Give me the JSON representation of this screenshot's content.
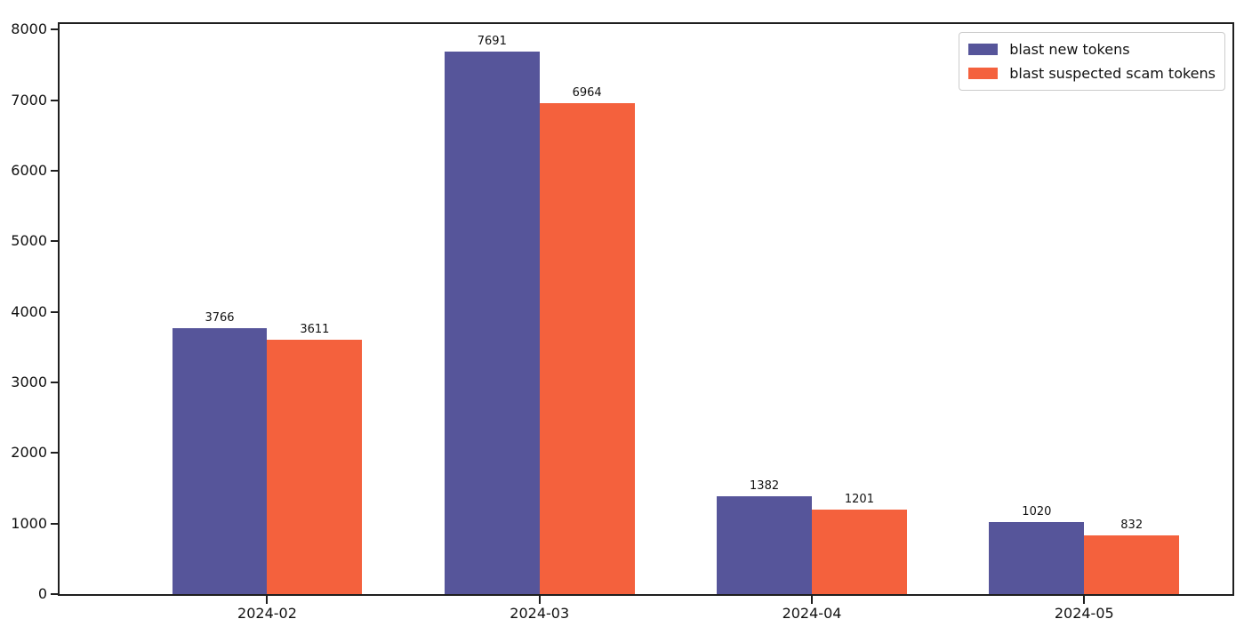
{
  "figure": {
    "background": "#ffffff",
    "text_color": "#111111",
    "spine_color": "#1f1f1f"
  },
  "chart_data": {
    "type": "bar",
    "title": "",
    "xlabel": "",
    "ylabel": "",
    "categories": [
      "2024-02",
      "2024-03",
      "2024-04",
      "2024-05"
    ],
    "series": [
      {
        "name": "blast new tokens",
        "color": "#56559A",
        "values": [
          3766,
          7691,
          1382,
          1020
        ]
      },
      {
        "name": "blast suspected scam tokens",
        "color": "#F4613D",
        "values": [
          3611,
          6964,
          1201,
          832
        ]
      }
    ],
    "bar_value_labels": [
      [
        "3766",
        "7691",
        "1382",
        "1020"
      ],
      [
        "3611",
        "6964",
        "1201",
        "832"
      ]
    ],
    "ylim": [
      0,
      8080
    ],
    "yticks": [
      0,
      1000,
      2000,
      3000,
      4000,
      5000,
      6000,
      7000,
      8000
    ],
    "grid": false,
    "legend": {
      "position": "upper right"
    }
  }
}
